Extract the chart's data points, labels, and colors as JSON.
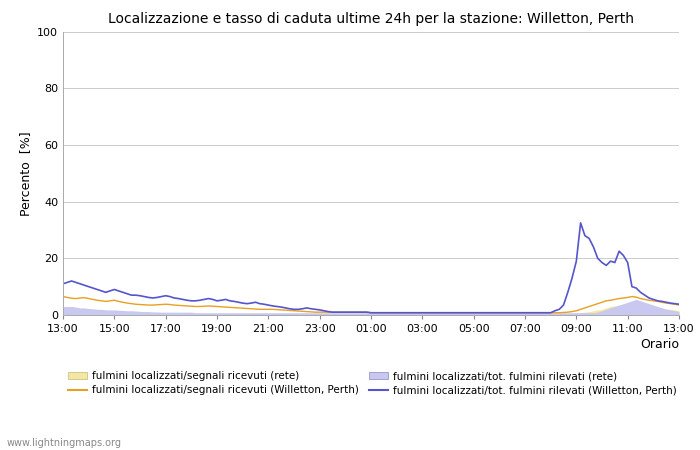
{
  "title": "Localizzazione e tasso di caduta ultime 24h per la stazione: Willetton, Perth",
  "ylabel": "Percento  [%]",
  "xlabel": "Orario",
  "ylim": [
    0,
    100
  ],
  "yticks": [
    0,
    20,
    40,
    60,
    80,
    100
  ],
  "xtick_labels": [
    "13:00",
    "15:00",
    "17:00",
    "19:00",
    "21:00",
    "23:00",
    "01:00",
    "03:00",
    "05:00",
    "07:00",
    "09:00",
    "11:00",
    "13:00"
  ],
  "bg_color": "#ffffff",
  "plot_bg_color": "#ffffff",
  "grid_color": "#cccccc",
  "watermark": "www.lightningmaps.org",
  "orange_line": [
    6.5,
    6.2,
    5.9,
    5.8,
    6.0,
    6.1,
    5.8,
    5.5,
    5.2,
    5.0,
    4.8,
    5.0,
    5.2,
    4.8,
    4.5,
    4.2,
    4.0,
    3.8,
    3.7,
    3.6,
    3.5,
    3.5,
    3.6,
    3.7,
    3.8,
    3.7,
    3.5,
    3.4,
    3.3,
    3.2,
    3.1,
    3.0,
    3.0,
    3.1,
    3.2,
    3.1,
    3.0,
    2.9,
    2.8,
    2.7,
    2.6,
    2.5,
    2.4,
    2.3,
    2.2,
    2.1,
    2.0,
    2.0,
    2.0,
    2.0,
    1.9,
    1.8,
    1.7,
    1.6,
    1.5,
    1.4,
    1.3,
    1.2,
    1.1,
    1.0,
    1.0,
    1.0,
    1.0,
    1.0,
    1.0,
    1.0,
    1.0,
    1.0,
    1.0,
    1.0,
    1.0,
    1.0,
    0.8,
    0.8,
    0.8,
    0.8,
    0.8,
    0.8,
    0.8,
    0.8,
    0.8,
    0.8,
    0.8,
    0.8,
    0.8,
    0.8,
    0.8,
    0.8,
    0.8,
    0.8,
    0.8,
    0.8,
    0.8,
    0.8,
    0.8,
    0.8,
    0.8,
    0.8,
    0.8,
    0.8,
    0.8,
    0.8,
    0.8,
    0.8,
    0.8,
    0.8,
    0.8,
    0.8,
    0.8,
    0.8,
    0.8,
    0.8,
    0.8,
    0.8,
    0.8,
    0.8,
    0.8,
    0.9,
    1.0,
    1.2,
    1.5,
    2.0,
    2.5,
    3.0,
    3.5,
    4.0,
    4.5,
    5.0,
    5.2,
    5.5,
    5.8,
    6.0,
    6.2,
    6.5,
    6.3,
    5.8,
    5.5,
    5.2,
    5.0,
    4.8,
    4.5,
    4.2,
    4.0,
    3.8,
    3.5
  ],
  "blue_line": [
    11.0,
    11.5,
    12.0,
    11.5,
    11.0,
    10.5,
    10.0,
    9.5,
    9.0,
    8.5,
    8.0,
    8.5,
    9.0,
    8.5,
    8.0,
    7.5,
    7.0,
    7.0,
    6.8,
    6.5,
    6.2,
    6.0,
    6.2,
    6.5,
    6.8,
    6.5,
    6.0,
    5.8,
    5.5,
    5.2,
    5.0,
    5.0,
    5.2,
    5.5,
    5.8,
    5.5,
    5.0,
    5.2,
    5.5,
    5.0,
    4.8,
    4.5,
    4.2,
    4.0,
    4.2,
    4.5,
    4.0,
    3.8,
    3.5,
    3.2,
    3.0,
    2.8,
    2.5,
    2.2,
    2.0,
    2.0,
    2.2,
    2.5,
    2.2,
    2.0,
    1.8,
    1.5,
    1.2,
    1.0,
    1.0,
    1.0,
    1.0,
    1.0,
    1.0,
    1.0,
    1.0,
    1.0,
    0.8,
    0.8,
    0.8,
    0.8,
    0.8,
    0.8,
    0.8,
    0.8,
    0.8,
    0.8,
    0.8,
    0.8,
    0.8,
    0.8,
    0.8,
    0.8,
    0.8,
    0.8,
    0.8,
    0.8,
    0.8,
    0.8,
    0.8,
    0.8,
    0.8,
    0.8,
    0.8,
    0.8,
    0.8,
    0.8,
    0.8,
    0.8,
    0.8,
    0.8,
    0.8,
    0.8,
    0.8,
    0.8,
    0.8,
    0.8,
    0.8,
    0.8,
    0.8,
    1.5,
    2.0,
    3.5,
    8.0,
    13.0,
    19.0,
    32.5,
    28.0,
    27.0,
    24.0,
    20.0,
    18.5,
    17.5,
    19.0,
    18.5,
    22.5,
    21.0,
    18.5,
    10.0,
    9.5,
    8.0,
    7.0,
    6.0,
    5.5,
    5.0,
    4.8,
    4.5,
    4.2,
    4.0,
    3.8
  ],
  "orange_fill": [
    0.5,
    0.5,
    0.5,
    0.5,
    0.5,
    0.5,
    0.5,
    0.5,
    0.5,
    0.5,
    0.5,
    0.5,
    0.5,
    0.5,
    0.5,
    0.5,
    0.5,
    0.5,
    0.5,
    0.5,
    0.5,
    0.5,
    0.5,
    0.5,
    0.5,
    0.5,
    0.5,
    0.5,
    0.5,
    0.5,
    0.5,
    0.5,
    0.5,
    0.5,
    0.5,
    0.5,
    0.5,
    0.5,
    0.5,
    0.5,
    0.5,
    0.5,
    0.5,
    0.5,
    0.5,
    0.5,
    0.5,
    0.5,
    0.5,
    0.5,
    0.5,
    0.5,
    0.5,
    0.5,
    0.5,
    0.5,
    0.5,
    0.5,
    0.5,
    0.5,
    0.5,
    0.5,
    0.5,
    0.5,
    0.5,
    0.5,
    0.5,
    0.5,
    0.5,
    0.5,
    0.5,
    0.5,
    0.5,
    0.5,
    0.5,
    0.5,
    0.5,
    0.5,
    0.5,
    0.5,
    0.5,
    0.5,
    0.5,
    0.5,
    0.5,
    0.5,
    0.5,
    0.5,
    0.5,
    0.5,
    0.5,
    0.5,
    0.5,
    0.5,
    0.5,
    0.5,
    0.5,
    0.5,
    0.5,
    0.5,
    0.5,
    0.5,
    0.5,
    0.5,
    0.5,
    0.5,
    0.5,
    0.5,
    0.5,
    0.5,
    0.5,
    0.5,
    0.5,
    0.5,
    0.5,
    0.5,
    0.5,
    0.5,
    0.5,
    0.5,
    0.6,
    0.8,
    1.0,
    1.2,
    1.5,
    1.8,
    2.0,
    2.5,
    3.0,
    3.2,
    3.5,
    3.8,
    4.0,
    4.2,
    4.0,
    3.8,
    3.5,
    3.2,
    3.0,
    2.8,
    2.5,
    2.2,
    2.0,
    1.8,
    1.5
  ],
  "blue_fill": [
    3.0,
    3.0,
    3.0,
    2.8,
    2.5,
    2.5,
    2.3,
    2.2,
    2.0,
    2.0,
    1.8,
    1.8,
    1.8,
    1.7,
    1.6,
    1.5,
    1.5,
    1.4,
    1.3,
    1.2,
    1.2,
    1.1,
    1.1,
    1.0,
    1.0,
    1.0,
    1.0,
    1.0,
    1.0,
    1.0,
    1.0,
    0.8,
    0.8,
    0.8,
    0.8,
    0.8,
    0.8,
    0.8,
    0.8,
    0.8,
    0.8,
    0.8,
    0.8,
    0.8,
    0.8,
    0.8,
    0.8,
    0.8,
    0.8,
    0.8,
    0.8,
    0.8,
    0.8,
    0.8,
    0.8,
    0.8,
    0.8,
    0.8,
    0.8,
    0.8,
    0.8,
    0.8,
    0.8,
    0.8,
    0.8,
    0.8,
    0.8,
    0.8,
    0.8,
    0.8,
    0.8,
    0.8,
    0.8,
    0.8,
    0.8,
    0.8,
    0.8,
    0.8,
    0.8,
    0.8,
    0.8,
    0.8,
    0.8,
    0.8,
    0.8,
    0.8,
    0.8,
    0.8,
    0.8,
    0.8,
    0.8,
    0.8,
    0.8,
    0.8,
    0.8,
    0.8,
    0.8,
    0.8,
    0.8,
    0.8,
    0.8,
    0.8,
    0.8,
    0.8,
    0.8,
    0.8,
    0.8,
    0.8,
    0.8,
    0.8,
    0.8,
    0.8,
    0.8,
    0.8,
    0.8,
    0.8,
    0.8,
    0.8,
    0.8,
    0.8,
    0.8,
    0.8,
    0.8,
    0.8,
    0.8,
    1.0,
    1.5,
    2.0,
    2.5,
    3.0,
    3.5,
    4.0,
    4.5,
    5.0,
    5.5,
    5.0,
    4.5,
    4.0,
    3.5,
    3.0,
    2.5,
    2.0,
    1.8,
    1.5,
    1.2
  ]
}
